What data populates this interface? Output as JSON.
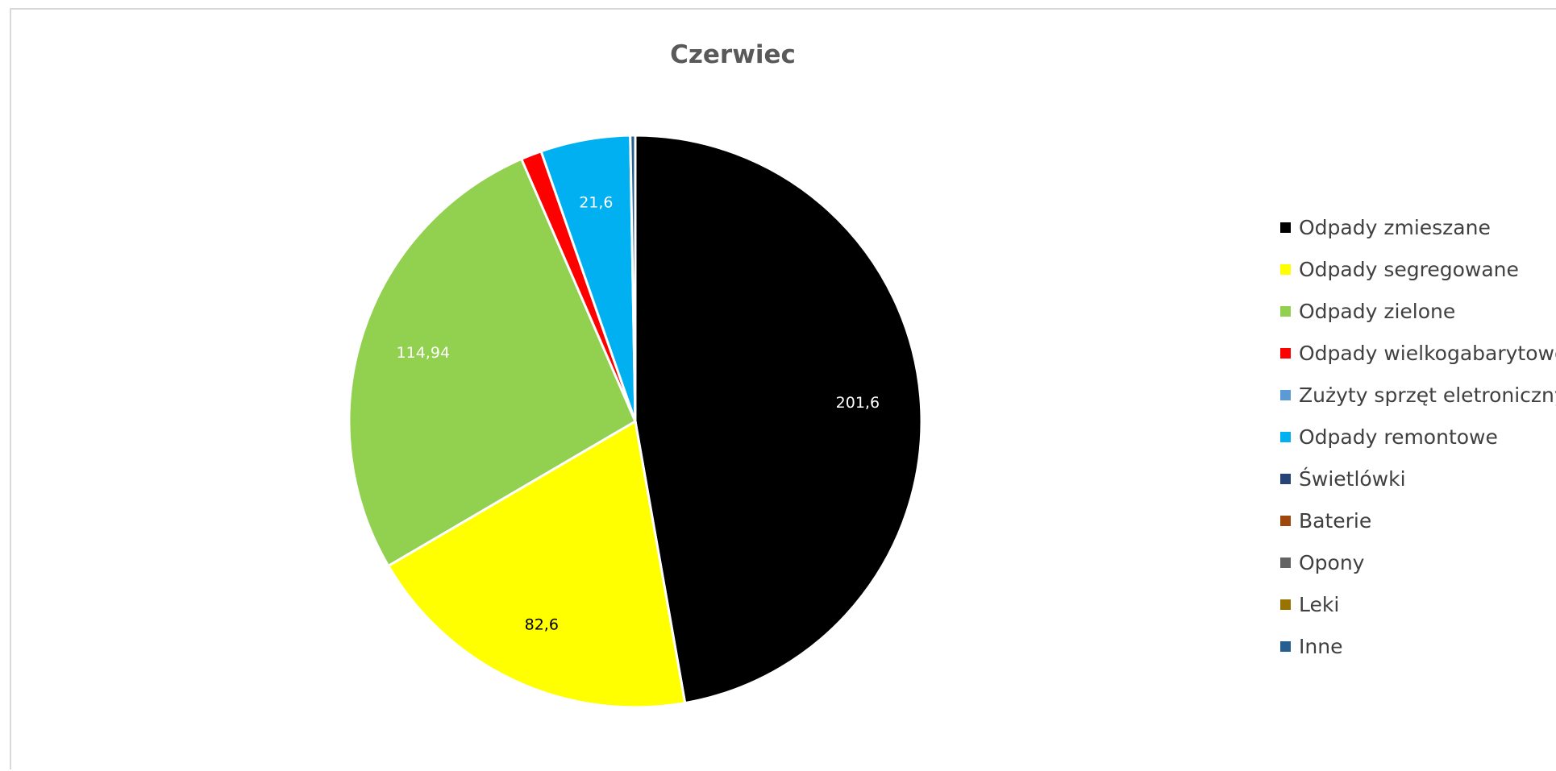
{
  "chart_data": {
    "type": "pie",
    "title": "Czerwiec",
    "legend_position": "right",
    "slices": [
      {
        "label": "Odpady zmieszane",
        "value": 201.6,
        "display": "201,6",
        "color": "#000000",
        "label_color": "#ffffff"
      },
      {
        "label": "Odpady segregowane",
        "value": 82.6,
        "display": "82,6",
        "color": "#ffff00",
        "label_color": "#000000"
      },
      {
        "label": "Odpady zielone",
        "value": 114.94,
        "display": "114,94",
        "color": "#92d050",
        "label_color": "#ffffff"
      },
      {
        "label": "Odpady wielkogabarytowe",
        "value": 5,
        "display": "",
        "color": "#ff0000",
        "label_color": "#ffffff"
      },
      {
        "label": "Zużyty sprzęt eletroniczny",
        "value": 0,
        "display": "",
        "color": "#5b9bd5",
        "label_color": "#ffffff"
      },
      {
        "label": "Odpady remontowe",
        "value": 21.6,
        "display": "21,6",
        "color": "#00b0f0",
        "label_color": "#ffffff"
      },
      {
        "label": "Świetlówki",
        "value": 0,
        "display": "",
        "color": "#264478",
        "label_color": "#ffffff"
      },
      {
        "label": "Baterie",
        "value": 0,
        "display": "",
        "color": "#9e480e",
        "label_color": "#ffffff"
      },
      {
        "label": "Opony",
        "value": 0,
        "display": "",
        "color": "#636363",
        "label_color": "#ffffff"
      },
      {
        "label": "Leki",
        "value": 0,
        "display": "",
        "color": "#997300",
        "label_color": "#ffffff"
      },
      {
        "label": "Inne",
        "value": 1.2,
        "display": "",
        "color": "#255e91",
        "label_color": "#ffffff"
      }
    ]
  }
}
